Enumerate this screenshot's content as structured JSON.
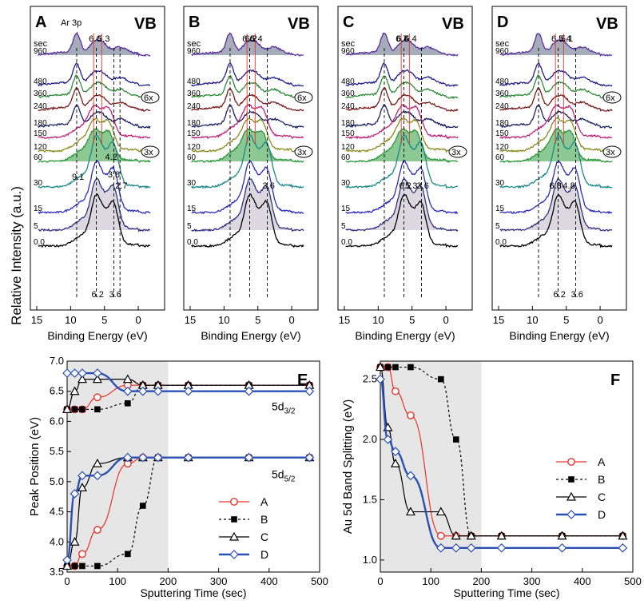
{
  "figure": {
    "ylabel_top": "Relative Intensity (a.u.)",
    "panel_xlabel": "Binding Energy (eV)",
    "panel_xticks": [
      "15",
      "10",
      "5",
      "0"
    ],
    "vb_label": "VB",
    "sec_label": "sec"
  },
  "chart_data": [
    {
      "panel": "A",
      "type": "line",
      "title": "VB",
      "xlabel": "Binding Energy (eV)",
      "ylabel": "Relative Intensity (a.u.)",
      "xlim": [
        15,
        -2
      ],
      "times_sec": [
        "960",
        "480",
        "360",
        "240",
        "180",
        "150",
        "120",
        "60",
        "30",
        "15",
        "5",
        "0.0"
      ],
      "annotations": [
        "Ar 3p",
        "6.6",
        "5.3",
        "2.7",
        "9.1",
        "4.2",
        "3.8",
        "6.2",
        "3.6",
        "6x",
        "3x"
      ]
    },
    {
      "panel": "B",
      "type": "line",
      "title": "VB",
      "xlabel": "Binding Energy (eV)",
      "xlim": [
        15,
        -2
      ],
      "times_sec": [
        "960",
        "480",
        "360",
        "240",
        "180",
        "150",
        "120",
        "60",
        "30",
        "15",
        "5",
        "0.0"
      ],
      "annotations": [
        "6.6",
        "5.4",
        "6.2",
        "3.6",
        "6x",
        "3x"
      ]
    },
    {
      "panel": "C",
      "type": "line",
      "title": "VB",
      "xlabel": "Binding Energy (eV)",
      "xlim": [
        15,
        -2
      ],
      "times_sec": [
        "960",
        "480",
        "360",
        "240",
        "180",
        "150",
        "120",
        "60",
        "30",
        "15",
        "5",
        "0.0"
      ],
      "annotations": [
        "6.6",
        "5.4",
        "6.7",
        "5.3",
        "6.2",
        "3.6",
        "3x"
      ]
    },
    {
      "panel": "D",
      "type": "line",
      "title": "VB",
      "xlabel": "Binding Energy (eV)",
      "xlim": [
        15,
        -2
      ],
      "times_sec": [
        "960",
        "480",
        "360",
        "240",
        "180",
        "150",
        "120",
        "60",
        "30",
        "15",
        "5",
        "0.0"
      ],
      "annotations": [
        "6.5",
        "5.4",
        "5.1",
        "6.8",
        "6.8",
        "4.8",
        "6.2",
        "3.6",
        "6x",
        "3x"
      ]
    },
    {
      "panel": "E",
      "type": "line",
      "xlabel": "Sputtering Time (sec)",
      "ylabel": "Peak Position (eV)",
      "xlim": [
        0,
        500
      ],
      "ylim": [
        3.5,
        7.0
      ],
      "xticks": [
        "0",
        "100",
        "200",
        "300",
        "400",
        "500"
      ],
      "yticks": [
        "3.5",
        "4.0",
        "4.5",
        "5.0",
        "5.5",
        "6.0",
        "6.5",
        "7.0"
      ],
      "shaded_x": [
        0,
        200
      ],
      "group_labels": [
        {
          "main": "5d",
          "sub": "3/2"
        },
        {
          "main": "5d",
          "sub": "5/2"
        }
      ],
      "series": [
        {
          "name": "A",
          "color": "#e8312a",
          "marker": "circle-open",
          "upper": {
            "x": [
              0,
              15,
              30,
              60,
              120,
              150,
              180,
              240,
              360,
              480
            ],
            "y": [
              6.2,
              6.2,
              6.2,
              6.4,
              6.6,
              6.6,
              6.6,
              6.6,
              6.6,
              6.6
            ]
          },
          "lower": {
            "x": [
              0,
              15,
              30,
              60,
              120,
              150,
              180,
              240,
              360,
              480
            ],
            "y": [
              3.6,
              3.6,
              3.8,
              4.2,
              5.3,
              5.4,
              5.4,
              5.4,
              5.4,
              5.4
            ]
          }
        },
        {
          "name": "B",
          "color": "#000000",
          "marker": "square-filled",
          "dashed": true,
          "upper": {
            "x": [
              0,
              15,
              30,
              60,
              120,
              150,
              180,
              240,
              360,
              480
            ],
            "y": [
              6.2,
              6.2,
              6.2,
              6.2,
              6.3,
              6.6,
              6.6,
              6.6,
              6.6,
              6.6
            ]
          },
          "lower": {
            "x": [
              0,
              15,
              30,
              60,
              120,
              150,
              180,
              240,
              360,
              480
            ],
            "y": [
              3.6,
              3.6,
              3.6,
              3.6,
              3.8,
              4.6,
              5.4,
              5.4,
              5.4,
              5.4
            ]
          }
        },
        {
          "name": "C",
          "color": "#000000",
          "marker": "triangle-open",
          "upper": {
            "x": [
              0,
              15,
              30,
              60,
              120,
              150,
              180,
              240,
              360,
              480
            ],
            "y": [
              6.2,
              6.5,
              6.7,
              6.7,
              6.7,
              6.6,
              6.6,
              6.6,
              6.6,
              6.6
            ]
          },
          "lower": {
            "x": [
              0,
              15,
              30,
              60,
              120,
              150,
              180,
              240,
              360,
              480
            ],
            "y": [
              3.6,
              4.0,
              4.9,
              5.3,
              5.4,
              5.4,
              5.4,
              5.4,
              5.4,
              5.4
            ]
          }
        },
        {
          "name": "D",
          "color": "#2b50b5",
          "marker": "diamond-open",
          "upper": {
            "x": [
              0,
              15,
              30,
              60,
              120,
              150,
              180,
              240,
              360,
              480
            ],
            "y": [
              6.8,
              6.8,
              6.8,
              6.8,
              6.5,
              6.5,
              6.5,
              6.5,
              6.5,
              6.5
            ]
          },
          "lower": {
            "x": [
              0,
              15,
              30,
              60,
              120,
              150,
              180,
              240,
              360,
              480
            ],
            "y": [
              3.7,
              4.8,
              5.1,
              5.1,
              5.4,
              5.4,
              5.4,
              5.4,
              5.4,
              5.4
            ]
          }
        }
      ]
    },
    {
      "panel": "F",
      "type": "line",
      "xlabel": "Sputtering Time (sec)",
      "ylabel": "Au 5d Band Splitting (eV)",
      "xlim": [
        0,
        500
      ],
      "ylim": [
        0.9,
        2.65
      ],
      "xticks": [
        "0",
        "100",
        "200",
        "300",
        "400",
        "500"
      ],
      "yticks": [
        "1.0",
        "1.5",
        "2.0",
        "2.5"
      ],
      "shaded_x": [
        0,
        200
      ],
      "series": [
        {
          "name": "A",
          "color": "#e8312a",
          "marker": "circle-open",
          "x": [
            0,
            15,
            30,
            60,
            120,
            150,
            180,
            240,
            360,
            480
          ],
          "y": [
            2.6,
            2.6,
            2.4,
            2.2,
            1.2,
            1.2,
            1.2,
            1.2,
            1.2,
            1.2
          ]
        },
        {
          "name": "B",
          "color": "#000000",
          "marker": "square-filled",
          "dashed": true,
          "x": [
            0,
            15,
            30,
            60,
            120,
            150,
            180,
            240,
            360,
            480
          ],
          "y": [
            2.6,
            2.6,
            2.6,
            2.6,
            2.5,
            2.0,
            1.2,
            1.2,
            1.2,
            1.2
          ]
        },
        {
          "name": "C",
          "color": "#000000",
          "marker": "triangle-open",
          "x": [
            0,
            15,
            30,
            60,
            120,
            150,
            180,
            240,
            360,
            480
          ],
          "y": [
            2.6,
            2.1,
            1.8,
            1.4,
            1.4,
            1.2,
            1.2,
            1.2,
            1.2,
            1.2
          ]
        },
        {
          "name": "D",
          "color": "#2b50b5",
          "marker": "diamond-open",
          "x": [
            0,
            15,
            30,
            60,
            120,
            150,
            180,
            240,
            360,
            480
          ],
          "y": [
            2.5,
            2.0,
            1.9,
            1.7,
            1.1,
            1.1,
            1.1,
            1.1,
            1.1,
            1.1
          ]
        }
      ]
    }
  ]
}
